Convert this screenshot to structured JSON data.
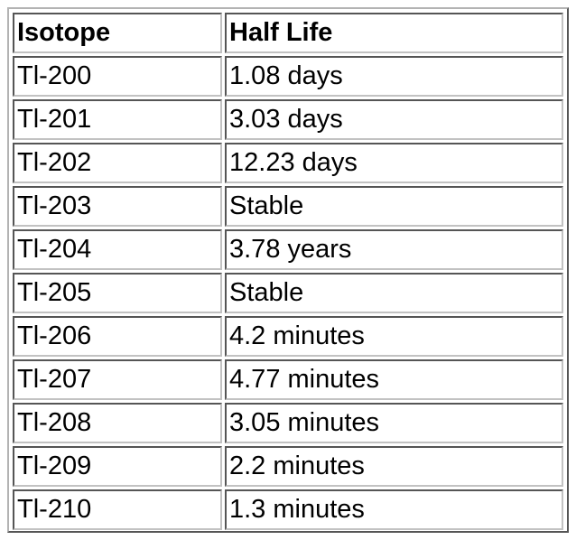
{
  "table": {
    "headers": [
      "Isotope",
      "Half Life"
    ],
    "rows": [
      [
        "Tl-200",
        "1.08 days"
      ],
      [
        "Tl-201",
        "3.03 days"
      ],
      [
        "Tl-202",
        "12.23 days"
      ],
      [
        "Tl-203",
        "Stable"
      ],
      [
        "Tl-204",
        "3.78 years"
      ],
      [
        "Tl-205",
        "Stable"
      ],
      [
        "Tl-206",
        "4.2 minutes"
      ],
      [
        "Tl-207",
        "4.77 minutes"
      ],
      [
        "Tl-208",
        "3.05 minutes"
      ],
      [
        "Tl-209",
        "2.2 minutes"
      ],
      [
        "Tl-210",
        "1.3 minutes"
      ]
    ]
  }
}
